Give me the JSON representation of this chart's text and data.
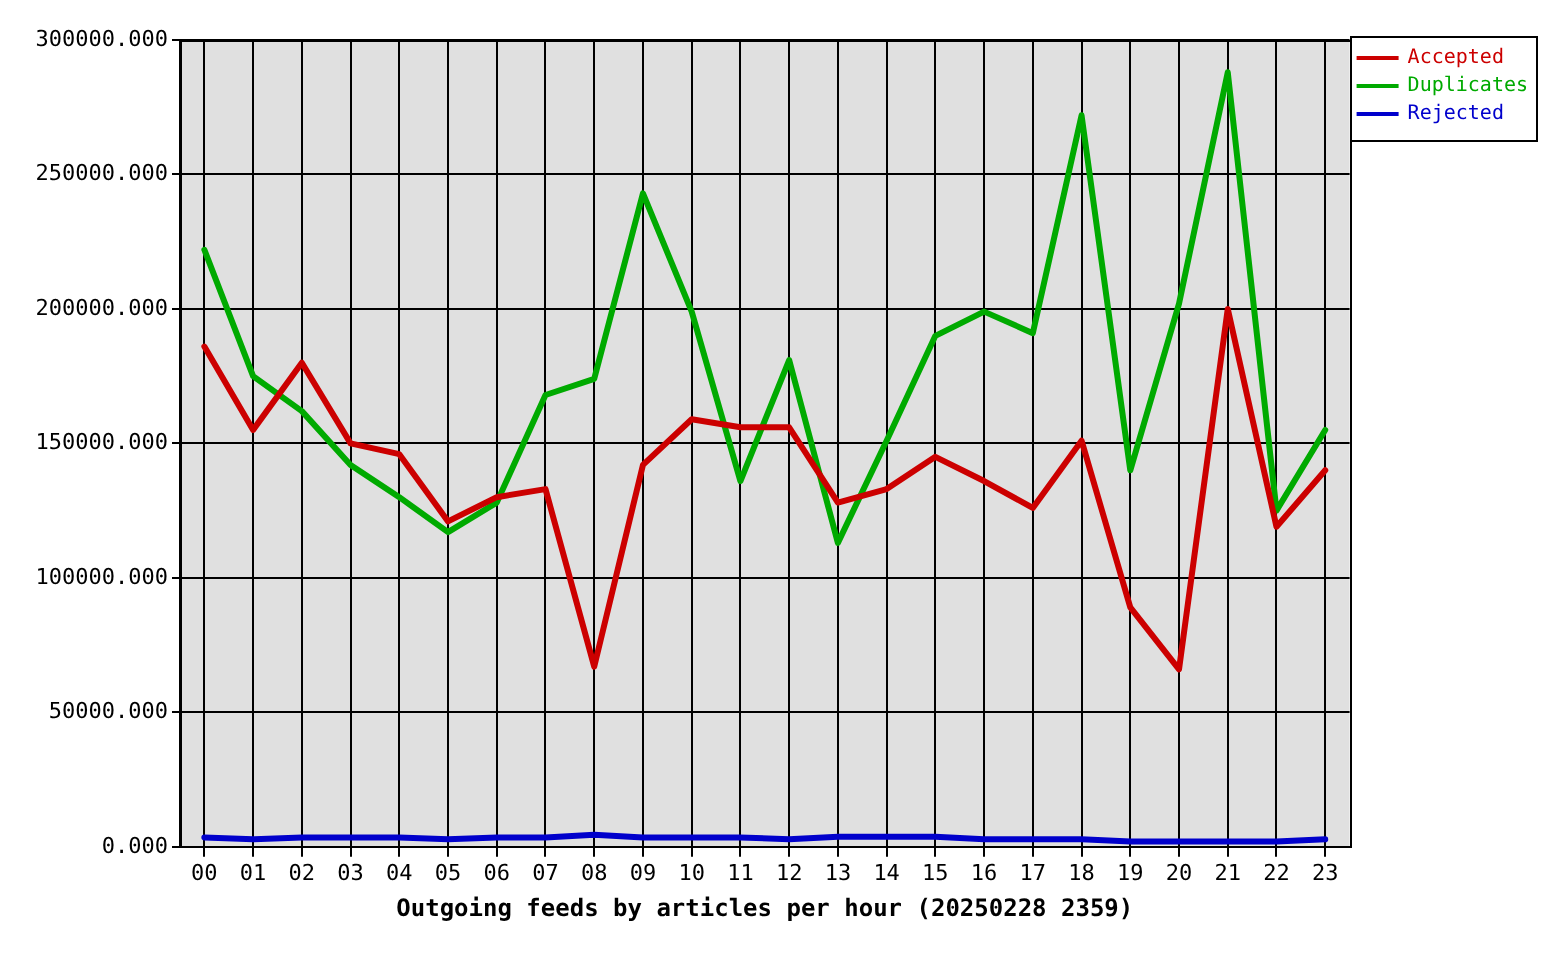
{
  "chart_data": {
    "type": "line",
    "xlabel": "Outgoing feeds by articles per hour (20250228 2359)",
    "categories": [
      "00",
      "01",
      "02",
      "03",
      "04",
      "05",
      "06",
      "07",
      "08",
      "09",
      "10",
      "11",
      "12",
      "13",
      "14",
      "15",
      "16",
      "17",
      "18",
      "19",
      "20",
      "21",
      "22",
      "23"
    ],
    "series": [
      {
        "name": "Accepted",
        "color": "#cc0000",
        "values": [
          186000,
          155000,
          180000,
          150000,
          146000,
          121000,
          130000,
          133000,
          67000,
          142000,
          159000,
          156000,
          156000,
          128000,
          133000,
          145000,
          136000,
          126000,
          151000,
          89000,
          66000,
          200000,
          119000,
          140000
        ]
      },
      {
        "name": "Duplicates",
        "color": "#00aa00",
        "values": [
          222000,
          175000,
          162000,
          142000,
          130000,
          117000,
          128000,
          168000,
          174000,
          243000,
          199000,
          136000,
          181000,
          113000,
          151000,
          190000,
          199000,
          191000,
          272000,
          140000,
          202000,
          288000,
          125000,
          155000
        ]
      },
      {
        "name": "Rejected",
        "color": "#0000cc",
        "values": [
          3500,
          2800,
          3500,
          3500,
          3500,
          2800,
          3500,
          3500,
          4500,
          3500,
          3500,
          3500,
          2800,
          3700,
          3700,
          3700,
          2800,
          2800,
          2800,
          2000,
          2000,
          2000,
          2000,
          2800
        ]
      }
    ],
    "ylim": [
      0,
      300000
    ],
    "yticks": [
      {
        "value": 0,
        "label": "0.000"
      },
      {
        "value": 50000,
        "label": "50000.000"
      },
      {
        "value": 100000,
        "label": "100000.000"
      },
      {
        "value": 150000,
        "label": "150000.000"
      },
      {
        "value": 200000,
        "label": "200000.000"
      },
      {
        "value": 250000,
        "label": "250000.000"
      },
      {
        "value": 300000,
        "label": "300000.000"
      }
    ],
    "grid": true,
    "legend": "top right"
  }
}
